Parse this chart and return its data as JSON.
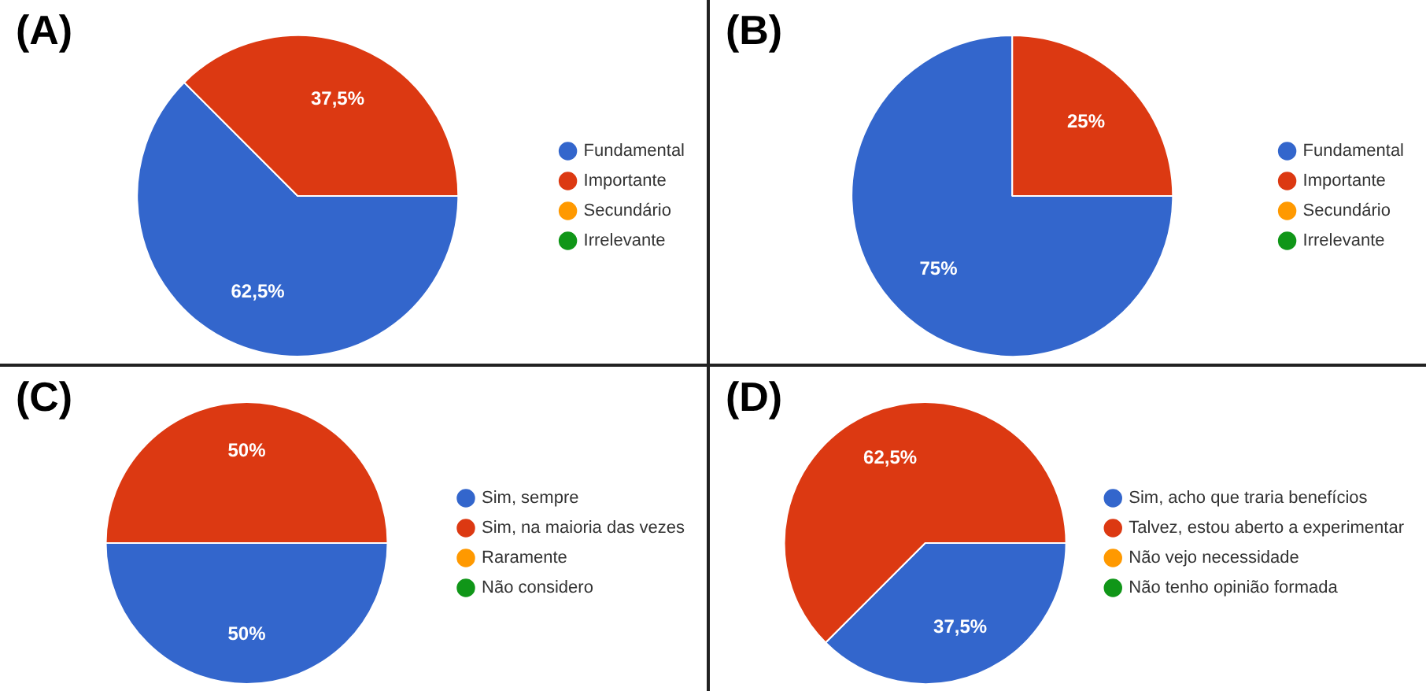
{
  "chart_data": [
    {
      "type": "pie",
      "title": "(A)",
      "categories": [
        "Fundamental",
        "Importante",
        "Secundário",
        "Irrelevante"
      ],
      "values": [
        62.5,
        37.5,
        0,
        0
      ],
      "value_labels": [
        "62,5%",
        "37,5%",
        null,
        null
      ],
      "colors": [
        "#3366cc",
        "#dc3912",
        "#ff9900",
        "#109618"
      ],
      "legend": "right"
    },
    {
      "type": "pie",
      "title": "(B)",
      "categories": [
        "Fundamental",
        "Importante",
        "Secundário",
        "Irrelevante"
      ],
      "values": [
        75,
        25,
        0,
        0
      ],
      "value_labels": [
        "75%",
        "25%",
        null,
        null
      ],
      "colors": [
        "#3366cc",
        "#dc3912",
        "#ff9900",
        "#109618"
      ],
      "legend": "right"
    },
    {
      "type": "pie",
      "title": "(C)",
      "categories": [
        "Sim, sempre",
        "Sim, na maioria das vezes",
        "Raramente",
        "Não considero"
      ],
      "values": [
        50,
        50,
        0,
        0
      ],
      "value_labels": [
        "50%",
        "50%",
        null,
        null
      ],
      "colors": [
        "#3366cc",
        "#dc3912",
        "#ff9900",
        "#109618"
      ],
      "legend": "right"
    },
    {
      "type": "pie",
      "title": "(D)",
      "categories": [
        "Sim, acho que traria benefícios",
        "Talvez, estou aberto a experimentar",
        "Não vejo necessidade",
        "Não tenho opinião formada"
      ],
      "values": [
        37.5,
        62.5,
        0,
        0
      ],
      "value_labels": [
        "37,5%",
        "62,5%",
        null,
        null
      ],
      "colors": [
        "#3366cc",
        "#dc3912",
        "#ff9900",
        "#109618"
      ],
      "legend": "right"
    }
  ]
}
